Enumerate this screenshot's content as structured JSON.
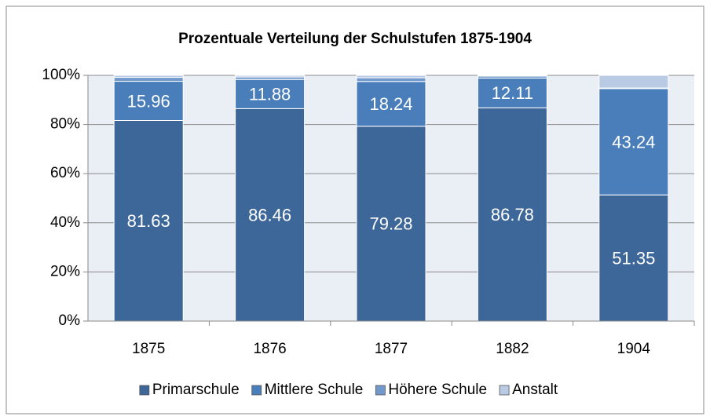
{
  "chart_data": {
    "type": "stacked_bar",
    "title": "Prozentuale Verteilung der Schulstufen 1875-1904",
    "categories": [
      "1875",
      "1876",
      "1877",
      "1882",
      "1904"
    ],
    "series": [
      {
        "name": "Primarschule",
        "color": "#3d6699",
        "show_labels": true,
        "values": [
          81.63,
          86.46,
          79.28,
          86.78,
          51.35
        ]
      },
      {
        "name": "Mittlere Schule",
        "color": "#4a7ebb",
        "show_labels": true,
        "values": [
          15.96,
          11.88,
          18.24,
          12.11,
          43.24
        ]
      },
      {
        "name": "Höhere Schule",
        "color": "#7199cc",
        "show_labels": false,
        "values": [
          1.6,
          1.0,
          1.5,
          0.8,
          0.27
        ]
      },
      {
        "name": "Anstalt",
        "color": "#b9cae4",
        "show_labels": false,
        "values": [
          0.81,
          0.66,
          0.98,
          0.31,
          5.14
        ]
      }
    ],
    "ylim": [
      0,
      100
    ],
    "yticks": [
      {
        "value": 0,
        "label": "0%"
      },
      {
        "value": 20,
        "label": "20%"
      },
      {
        "value": 40,
        "label": "40%"
      },
      {
        "value": 60,
        "label": "60%"
      },
      {
        "value": 80,
        "label": "80%"
      },
      {
        "value": 100,
        "label": "100%"
      }
    ],
    "grid": true,
    "legend": "bottom"
  }
}
